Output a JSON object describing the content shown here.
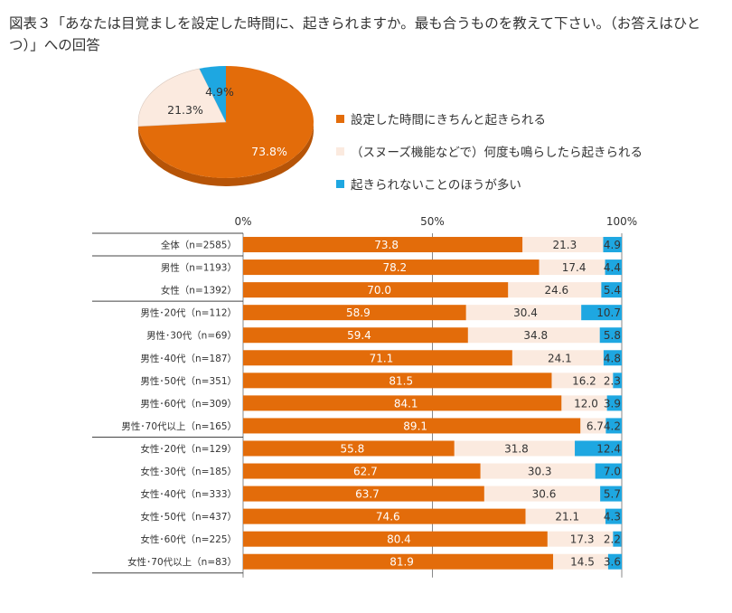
{
  "title": "図表３「あなたは目覚ましを設定した時間に、起きられますか。最も合うものを教えて下さい。（お答えはひとつ）」への回答",
  "colors": {
    "s1": "#e36c0a",
    "s2": "#fbeadf",
    "s3": "#1ea7e1",
    "label_dark": "#333333",
    "label_light": "#ffffff"
  },
  "chart_data": {
    "type": "bar",
    "orientation": "horizontal",
    "stacked": true,
    "xlim": [
      0,
      100
    ],
    "x_ticks": [
      "0%",
      "50%",
      "100%"
    ],
    "pie": {
      "type": "pie",
      "labels": [
        "73.8%",
        "21.3%",
        "4.9%"
      ],
      "values": [
        73.8,
        21.3,
        4.9
      ]
    },
    "series": [
      {
        "name": "設定した時間にきちんと起きられる",
        "values": [
          73.8,
          78.2,
          70.0,
          58.9,
          59.4,
          71.1,
          81.5,
          84.1,
          89.1,
          55.8,
          62.7,
          63.7,
          74.6,
          80.4,
          81.9
        ]
      },
      {
        "name": "（スヌーズ機能などで）何度も鳴らしたら起きられる",
        "values": [
          21.3,
          17.4,
          24.6,
          30.4,
          34.8,
          24.1,
          16.2,
          12.0,
          6.7,
          31.8,
          30.3,
          30.6,
          21.1,
          17.3,
          14.5
        ]
      },
      {
        "name": "起きられないことのほうが多い",
        "values": [
          4.9,
          4.4,
          5.4,
          10.7,
          5.8,
          4.8,
          2.3,
          3.9,
          4.2,
          12.4,
          7.0,
          5.7,
          4.3,
          2.2,
          3.6
        ]
      }
    ],
    "categories": [
      "全体（n=2585）",
      "男性（n=1193）",
      "女性（n=1392）",
      "男性･20代（n=112）",
      "男性･30代（n=69）",
      "男性･40代（n=187）",
      "男性･50代（n=351）",
      "男性･60代（n=309）",
      "男性･70代以上（n=165）",
      "女性･20代（n=129）",
      "女性･30代（n=185）",
      "女性･40代（n=333）",
      "女性･50代（n=437）",
      "女性･60代（n=225）",
      "女性･70代以上（n=83）"
    ],
    "labels": {
      "s1": [
        "73.8",
        "78.2",
        "70.0",
        "58.9",
        "59.4",
        "71.1",
        "81.5",
        "84.1",
        "89.1",
        "55.8",
        "62.7",
        "63.7",
        "74.6",
        "80.4",
        "81.9"
      ],
      "s2": [
        "21.3",
        "17.4",
        "24.6",
        "30.4",
        "34.8",
        "24.1",
        "16.2",
        "12.0",
        "6.7",
        "31.8",
        "30.3",
        "30.6",
        "21.1",
        "17.3",
        "14.5"
      ],
      "s3": [
        "4.9",
        "4.4",
        "5.4",
        "10.7",
        "5.8",
        "4.8",
        "2.3",
        "3.9",
        "4.2",
        "12.4",
        "7.0",
        "5.7",
        "4.3",
        "2.2",
        "3.6"
      ]
    },
    "group_separators_after": [
      0,
      2,
      8
    ]
  }
}
